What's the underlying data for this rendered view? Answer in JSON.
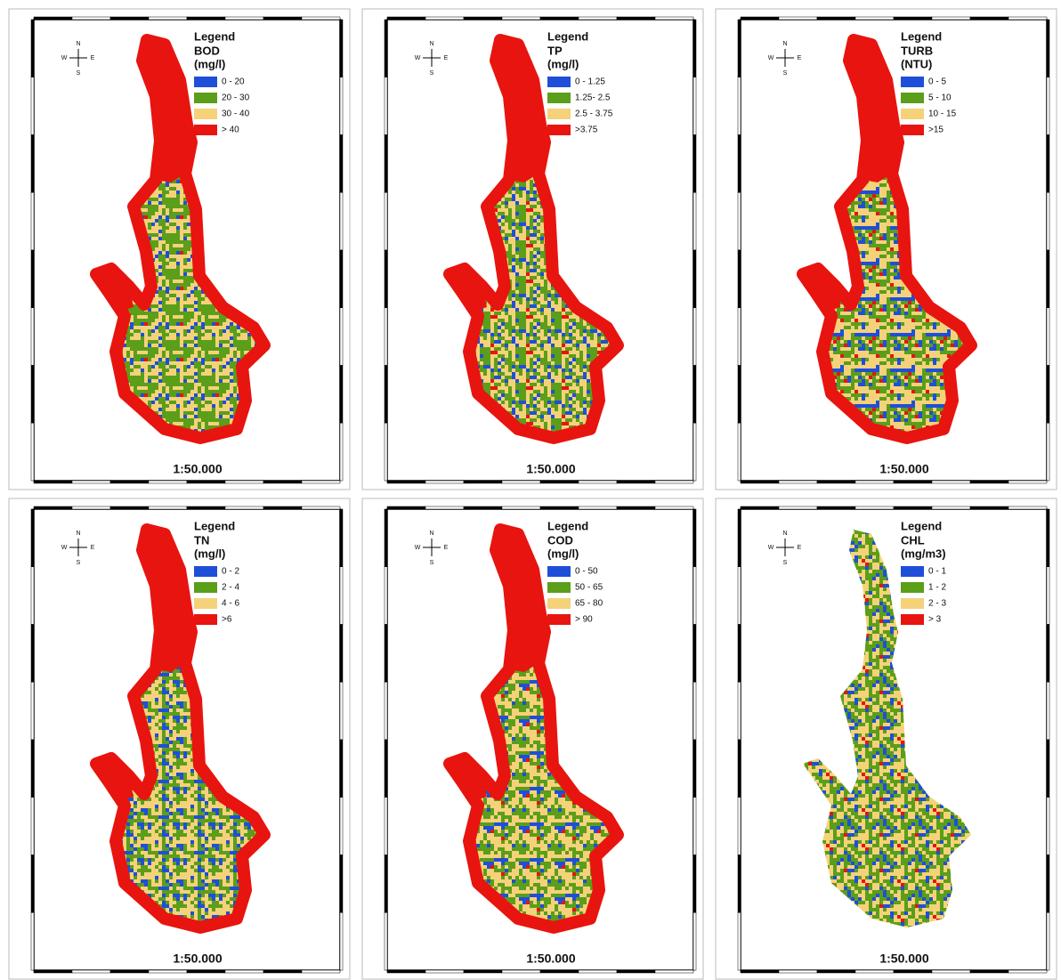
{
  "panels": [
    {
      "legend_title": "Legend",
      "parameter": "BOD",
      "unit": "(mg/l)",
      "scale": "1:50.000",
      "compass": {
        "n": "N",
        "s": "S",
        "e": "E",
        "w": "W"
      },
      "classes": [
        {
          "label": "0 - 20",
          "color": "#1f4fd8"
        },
        {
          "label": "20 - 30",
          "color": "#5a9e1a"
        },
        {
          "label": "30 - 40",
          "color": "#f5d27a"
        },
        {
          "label": "> 40",
          "color": "#e8140f"
        }
      ]
    },
    {
      "legend_title": "Legend",
      "parameter": "TP",
      "unit": "(mg/l)",
      "scale": "1:50.000",
      "compass": {
        "n": "N",
        "s": "S",
        "e": "E",
        "w": "W"
      },
      "classes": [
        {
          "label": "0 - 1.25",
          "color": "#1f4fd8"
        },
        {
          "label": "1.25- 2.5",
          "color": "#5a9e1a"
        },
        {
          "label": "2.5 - 3.75",
          "color": "#f5d27a"
        },
        {
          "label": ">3.75",
          "color": "#e8140f"
        }
      ]
    },
    {
      "legend_title": "Legend",
      "parameter": "TURB",
      "unit": "(NTU)",
      "scale": "1:50.000",
      "compass": {
        "n": "N",
        "s": "S",
        "e": "E",
        "w": "W"
      },
      "classes": [
        {
          "label": "0 - 5",
          "color": "#1f4fd8"
        },
        {
          "label": "5 - 10",
          "color": "#5a9e1a"
        },
        {
          "label": "10 - 15",
          "color": "#f5d27a"
        },
        {
          "label": ">15",
          "color": "#e8140f"
        }
      ]
    },
    {
      "legend_title": "Legend",
      "parameter": "TN",
      "unit": "(mg/l)",
      "scale": "1:50.000",
      "compass": {
        "n": "N",
        "s": "S",
        "e": "E",
        "w": "W"
      },
      "classes": [
        {
          "label": "0 - 2",
          "color": "#1f4fd8"
        },
        {
          "label": "2 - 4",
          "color": "#5a9e1a"
        },
        {
          "label": "4 - 6",
          "color": "#f5d27a"
        },
        {
          "label": ">6",
          "color": "#e8140f"
        }
      ]
    },
    {
      "legend_title": "Legend",
      "parameter": "COD",
      "unit": "(mg/l)",
      "scale": "1:50.000",
      "compass": {
        "n": "N",
        "s": "S",
        "e": "E",
        "w": "W"
      },
      "classes": [
        {
          "label": "0 - 50",
          "color": "#1f4fd8"
        },
        {
          "label": "50 - 65",
          "color": "#5a9e1a"
        },
        {
          "label": "65 - 80",
          "color": "#f5d27a"
        },
        {
          "label": "> 90",
          "color": "#e8140f"
        }
      ]
    },
    {
      "legend_title": "Legend",
      "parameter": "CHL",
      "unit": "(mg/m3)",
      "scale": "1:50.000",
      "compass": {
        "n": "N",
        "s": "S",
        "e": "E",
        "w": "W"
      },
      "classes": [
        {
          "label": "0 - 1",
          "color": "#1f4fd8"
        },
        {
          "label": "1 - 2",
          "color": "#5a9e1a"
        },
        {
          "label": "2 - 3",
          "color": "#f5d27a"
        },
        {
          "label": "> 3",
          "color": "#e8140f"
        }
      ]
    }
  ]
}
